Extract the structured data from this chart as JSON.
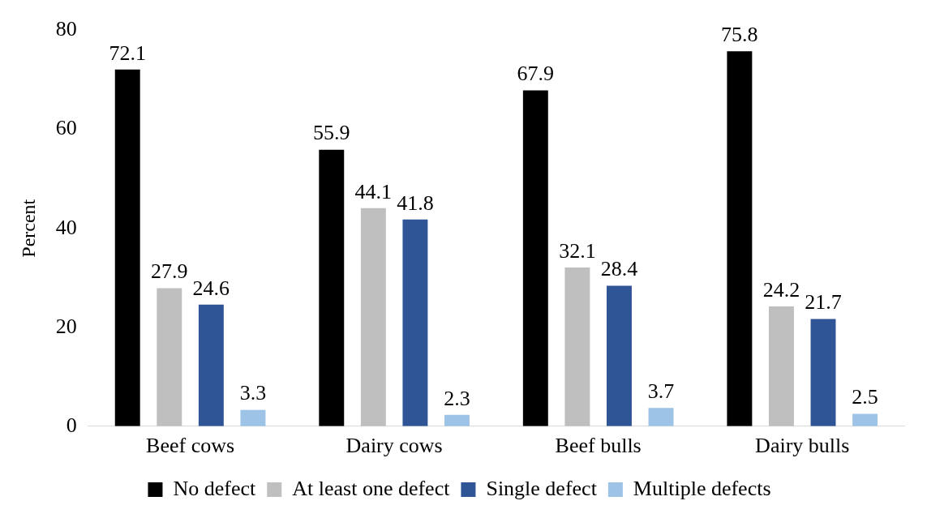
{
  "chart_data": {
    "type": "bar",
    "ylabel": "Percent",
    "categories": [
      "Beef cows",
      "Dairy cows",
      "Beef bulls",
      "Dairy bulls"
    ],
    "series": [
      {
        "name": "No defect",
        "color": "#000000",
        "values": [
          72.1,
          55.9,
          67.9,
          75.8
        ]
      },
      {
        "name": "At least one defect",
        "color": "#bfbfbf",
        "values": [
          27.9,
          44.1,
          32.1,
          24.2
        ]
      },
      {
        "name": "Single defect",
        "color": "#2f5597",
        "values": [
          24.6,
          41.8,
          28.4,
          21.7
        ]
      },
      {
        "name": "Multiple defects",
        "color": "#9dc3e6",
        "values": [
          3.3,
          2.3,
          3.7,
          2.5
        ]
      }
    ],
    "ylim": [
      0,
      80
    ],
    "yticks": [
      0,
      20,
      40,
      60,
      80
    ],
    "grid": false,
    "legend": "bottom",
    "data_labels": true
  }
}
